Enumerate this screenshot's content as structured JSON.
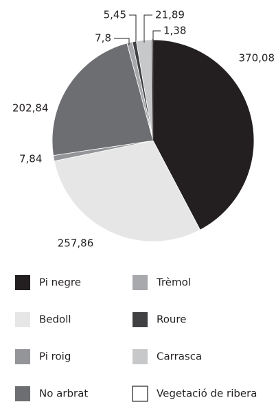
{
  "chart_data": {
    "type": "pie",
    "categories": [
      "Pi negre",
      "Bedoll",
      "Pi roig",
      "No arbrat",
      "Trèmol",
      "Roure",
      "Carrasca",
      "Vegetació de ribera"
    ],
    "values": [
      370.08,
      257.86,
      7.84,
      202.84,
      7.8,
      5.45,
      21.89,
      1.38
    ],
    "value_labels": [
      "370,08",
      "257,86",
      "7,84",
      "202,84",
      "7,8",
      "5,45",
      "21,89",
      "1,38"
    ],
    "colors": [
      "#231f20",
      "#e6e6e7",
      "#939598",
      "#6d6e71",
      "#a7a9ac",
      "#414042",
      "#c7c8ca",
      "#ffffff"
    ]
  }
}
